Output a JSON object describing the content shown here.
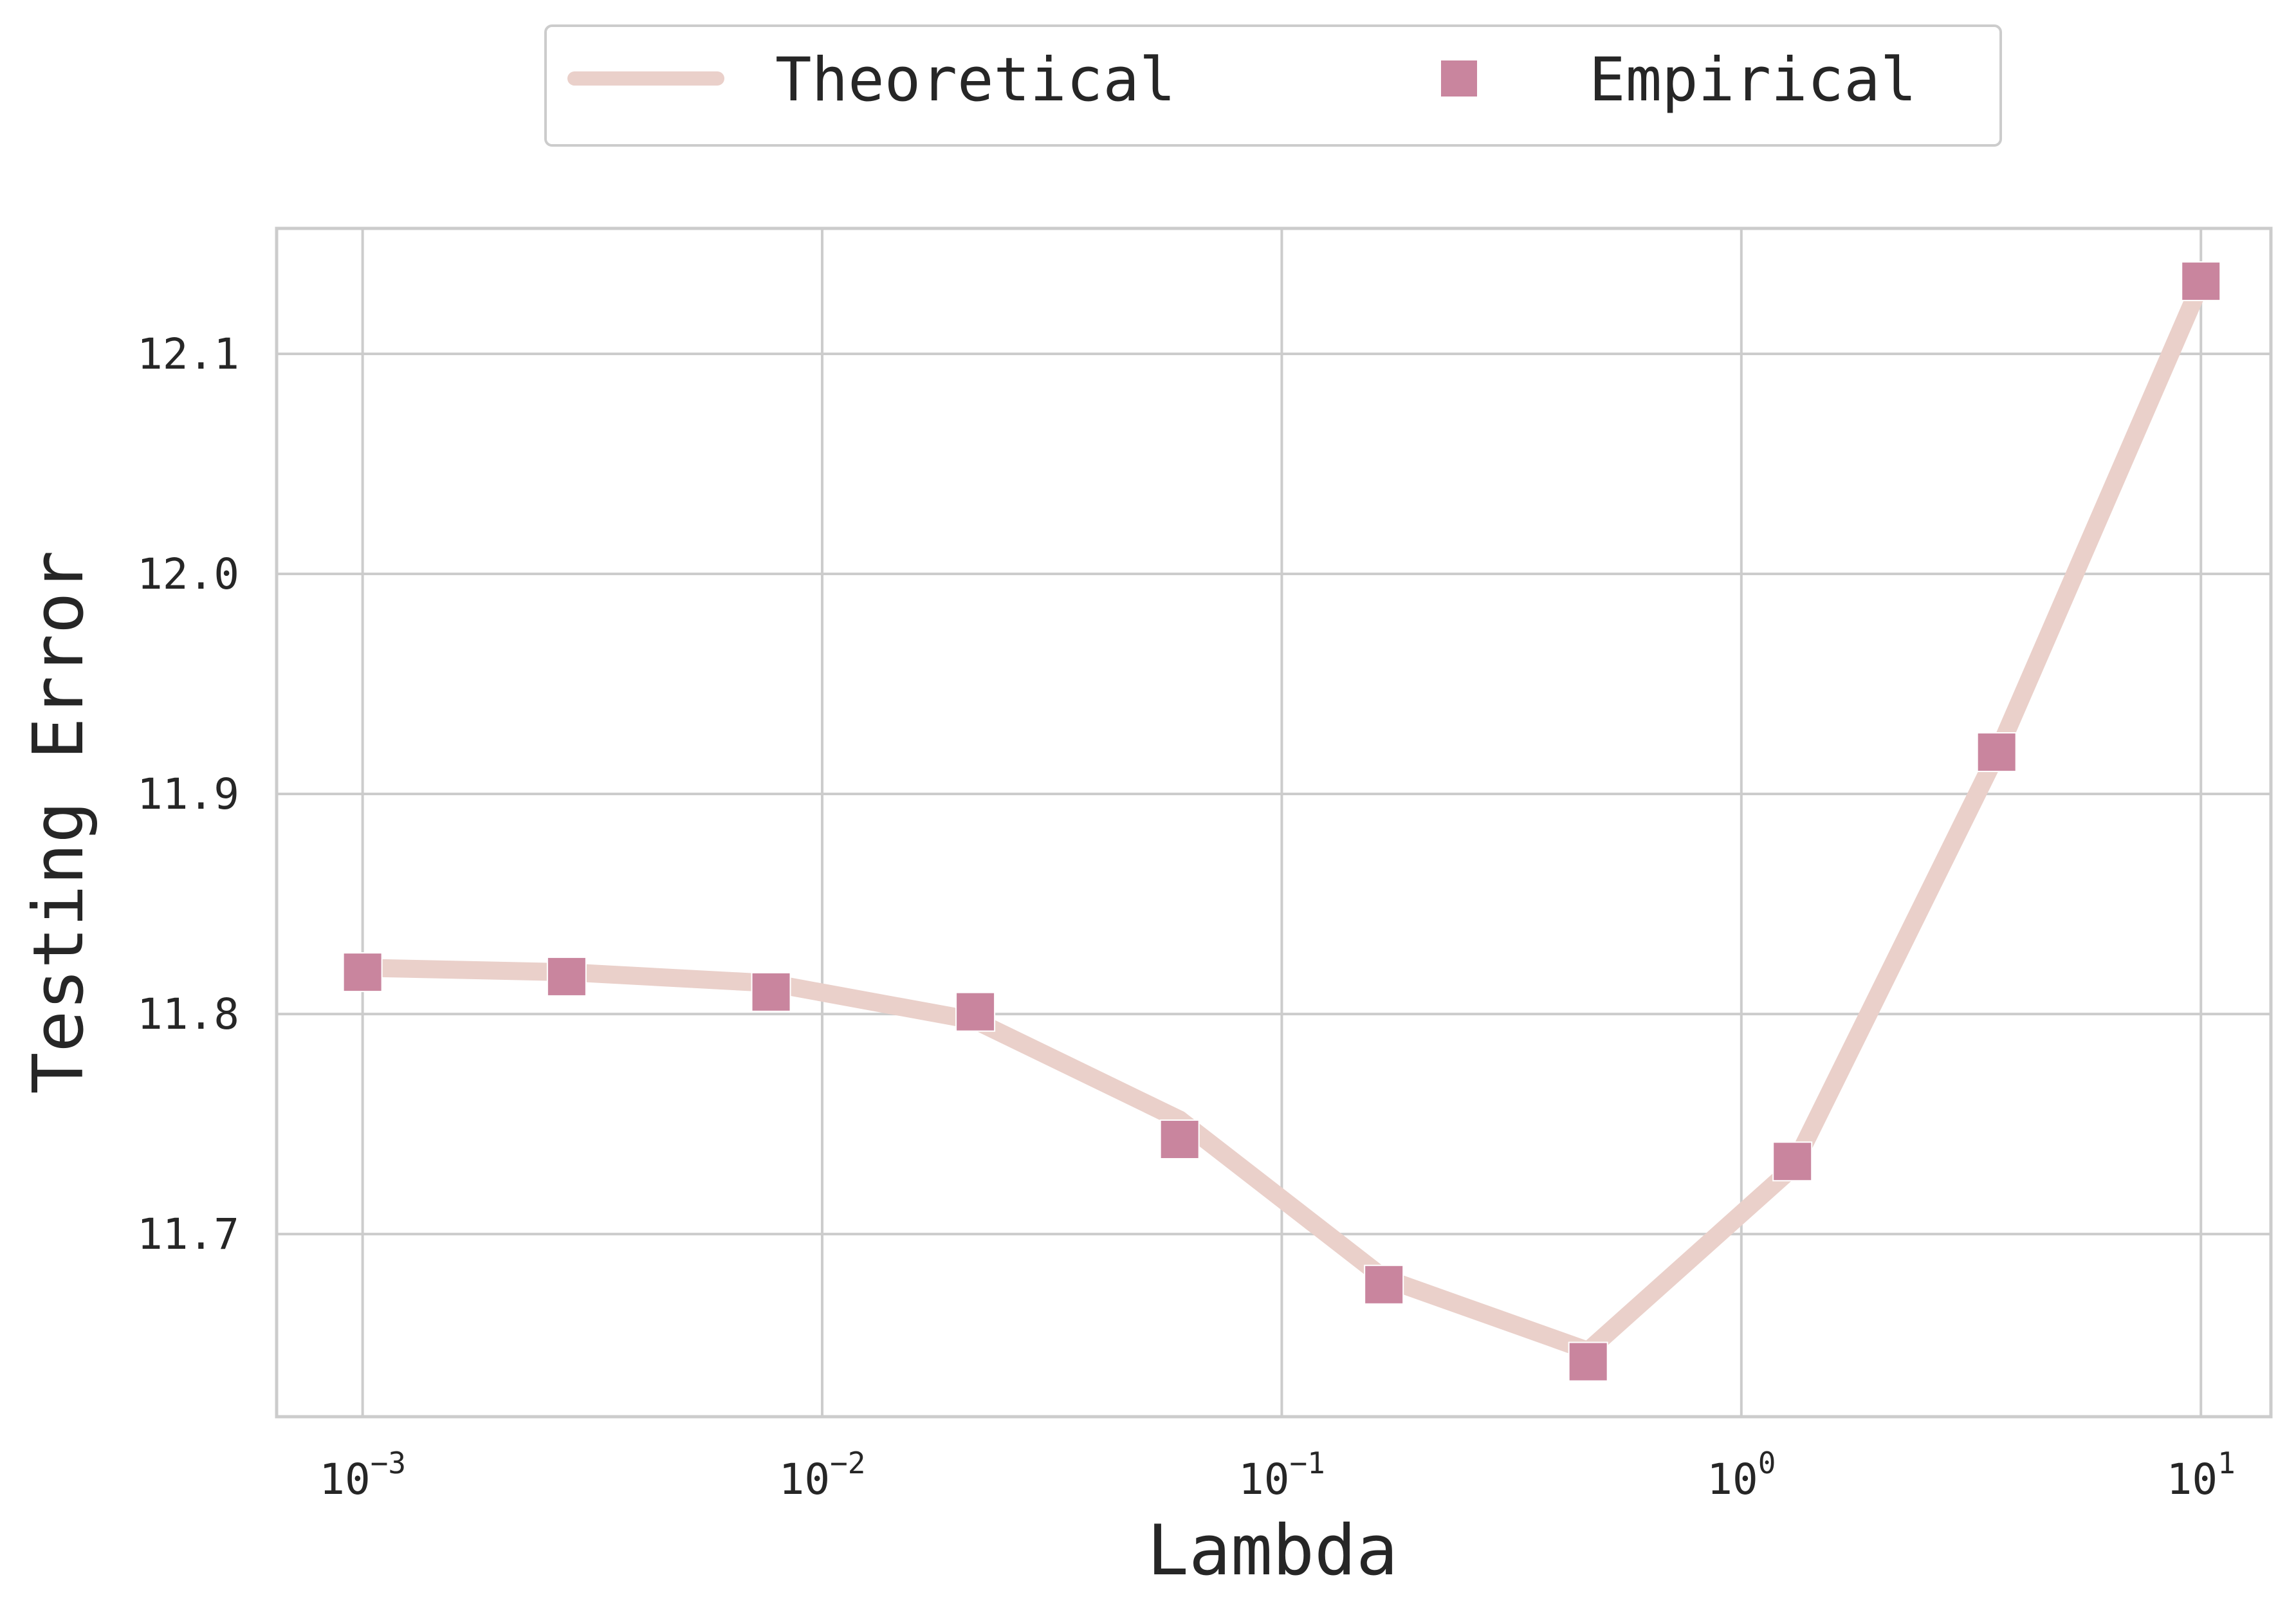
{
  "chart_data": {
    "type": "line",
    "title": "",
    "xlabel": "Lambda",
    "ylabel": "Testing Error",
    "xscale": "log",
    "xlim": [
      0.00065,
      14.2
    ],
    "ylim": [
      11.617,
      12.157
    ],
    "grid": true,
    "legend_position": "top-center",
    "x_ticks": [
      {
        "value": 0.001,
        "base": "10",
        "exp": "−3"
      },
      {
        "value": 0.01,
        "base": "10",
        "exp": "−2"
      },
      {
        "value": 0.1,
        "base": "10",
        "exp": "−1"
      },
      {
        "value": 1,
        "base": "10",
        "exp": "0"
      },
      {
        "value": 10,
        "base": "10",
        "exp": "1"
      }
    ],
    "y_ticks": [
      {
        "value": 11.7,
        "label": "11.7"
      },
      {
        "value": 11.8,
        "label": "11.8"
      },
      {
        "value": 11.9,
        "label": "11.9"
      },
      {
        "value": 12.0,
        "label": "12.0"
      },
      {
        "value": 12.1,
        "label": "12.1"
      }
    ],
    "x": [
      0.001,
      0.00278,
      0.00774,
      0.02154,
      0.05995,
      0.16681,
      0.46416,
      1.29155,
      3.59381,
      10.0
    ],
    "series": [
      {
        "name": "Theoretical",
        "kind": "line",
        "color": "#ead0ca",
        "values": [
          11.821,
          11.819,
          11.814,
          11.797,
          11.752,
          11.68,
          11.647,
          11.73,
          11.918,
          12.132
        ]
      },
      {
        "name": "Empirical",
        "kind": "marker",
        "marker": "square",
        "color": "#c9859e",
        "values": [
          11.819,
          11.817,
          11.81,
          11.801,
          11.743,
          11.677,
          11.642,
          11.733,
          11.919,
          12.133
        ]
      }
    ]
  }
}
